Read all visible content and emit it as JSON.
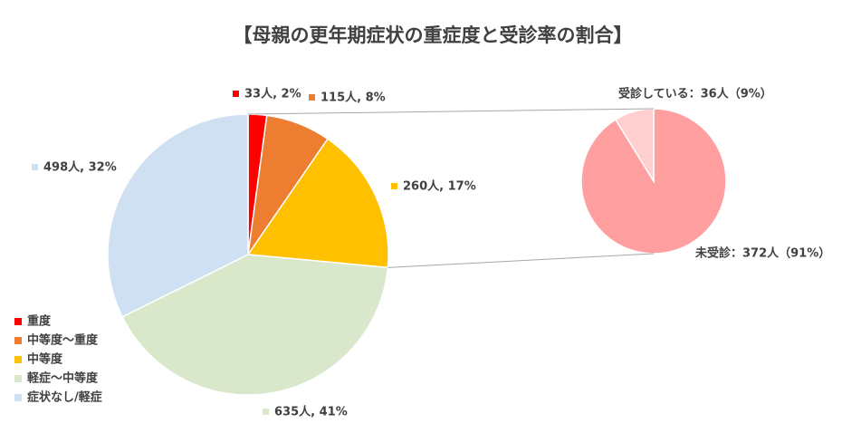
{
  "chart_data": [
    {
      "type": "pie",
      "title": "【母親の更年期症状の重症度と受診率の割合】",
      "categories": [
        "重度",
        "中等度～重度",
        "中等度",
        "軽症～中等度",
        "症状なし/軽症"
      ],
      "values": [
        33,
        115,
        260,
        635,
        498
      ],
      "value_labels": [
        "33人, 2%",
        "115人, 8%",
        "260人, 17%",
        "635人, 41%",
        "498人, 32%"
      ],
      "colors": [
        "#ff0000",
        "#ed7d31",
        "#ffc000",
        "#d9e7cb",
        "#cfe0f2"
      ],
      "legend": "lower-left"
    },
    {
      "type": "pie",
      "categories": [
        "未受診",
        "受診している"
      ],
      "values": [
        372,
        36
      ],
      "value_labels": [
        "未受診：372人（91%）",
        "受診している：36人（9%）"
      ],
      "colors": [
        "#ff9f9f",
        "#ffcfcf"
      ]
    }
  ]
}
